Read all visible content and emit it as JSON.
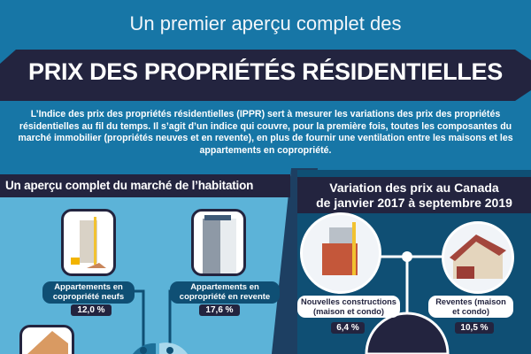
{
  "header": {
    "subtitle": "Un premier aperçu complet des",
    "title": "PRIX DES PROPRIÉTÉS RÉSIDENTIELLES",
    "intro": "L’Indice des prix des propriétés résidentielles (IPPR) sert à mesurer les variations des prix des propriétés résidentielles au fil du temps. Il s’agit d’un indice qui couvre, pour la première fois, toutes les composantes du marché immobilier (propriétés neuves et en revente), en plus de fournir une ventilation entre les maisons et les appartements en copropriété."
  },
  "left": {
    "heading": "Un aperçu complet du marché de l’habitation",
    "items": [
      {
        "label": "Appartements en copropriété neufs",
        "value": "12,0 %"
      },
      {
        "label": "Appartements en copropriété en revente",
        "value": "17,6 %"
      }
    ]
  },
  "right": {
    "heading_line1": "Variation des prix au Canada",
    "heading_line2": "de janvier 2017 à septembre 2019",
    "items": [
      {
        "label": "Nouvelles constructions (maison et condo)",
        "value": "6,4 %"
      },
      {
        "label": "Reventes (maison et condo)",
        "value": "10,5 %"
      }
    ]
  },
  "colors": {
    "blue": "#1776a6",
    "navy": "#23243f",
    "light": "#5cb3d8",
    "teal": "#0f4f74"
  }
}
